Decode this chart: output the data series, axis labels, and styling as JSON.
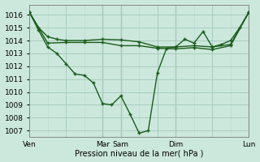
{
  "background_color": "#cce8dc",
  "grid_color_major": "#a8ccc0",
  "grid_color_minor": "#b8d8cc",
  "line_color": "#1a5c1a",
  "xlabel": "Pression niveau de la mer( hPa )",
  "ylim": [
    1006.5,
    1016.8
  ],
  "yticks": [
    1007,
    1008,
    1009,
    1010,
    1011,
    1012,
    1013,
    1014,
    1015,
    1016
  ],
  "xtick_labels": [
    "Ven",
    "",
    "Mar",
    "Sam",
    "",
    "Dim",
    "",
    "Lun"
  ],
  "xtick_positions": [
    0,
    48,
    96,
    120,
    168,
    192,
    240,
    288
  ],
  "vlines": [
    96,
    120,
    192,
    288
  ],
  "series_flat1": {
    "x": [
      0,
      12,
      24,
      36,
      48,
      72,
      96,
      120,
      144,
      168,
      192,
      216,
      240,
      264,
      288
    ],
    "y": [
      1016.2,
      1015.0,
      1014.3,
      1014.1,
      1014.0,
      1014.0,
      1014.1,
      1014.05,
      1013.9,
      1013.5,
      1013.5,
      1013.6,
      1013.5,
      1013.7,
      1016.2
    ]
  },
  "series_flat2": {
    "x": [
      0,
      24,
      48,
      72,
      96,
      120,
      144,
      168,
      192,
      216,
      240,
      264,
      288
    ],
    "y": [
      1016.2,
      1013.8,
      1013.85,
      1013.85,
      1013.85,
      1013.6,
      1013.6,
      1013.4,
      1013.35,
      1013.45,
      1013.3,
      1013.6,
      1016.2
    ]
  },
  "series_deep": {
    "x": [
      0,
      12,
      24,
      36,
      48,
      60,
      72,
      84,
      96,
      108,
      120,
      132,
      144,
      156,
      168,
      180,
      192,
      204,
      216,
      228,
      240,
      252,
      264,
      276,
      288
    ],
    "y": [
      1016.2,
      1014.8,
      1013.5,
      1013.0,
      1012.2,
      1011.4,
      1011.3,
      1010.7,
      1009.1,
      1009.0,
      1009.7,
      1008.3,
      1006.8,
      1007.0,
      1011.5,
      1013.4,
      1013.5,
      1014.1,
      1013.8,
      1014.7,
      1013.5,
      1013.7,
      1014.0,
      1015.0,
      1016.2
    ]
  }
}
